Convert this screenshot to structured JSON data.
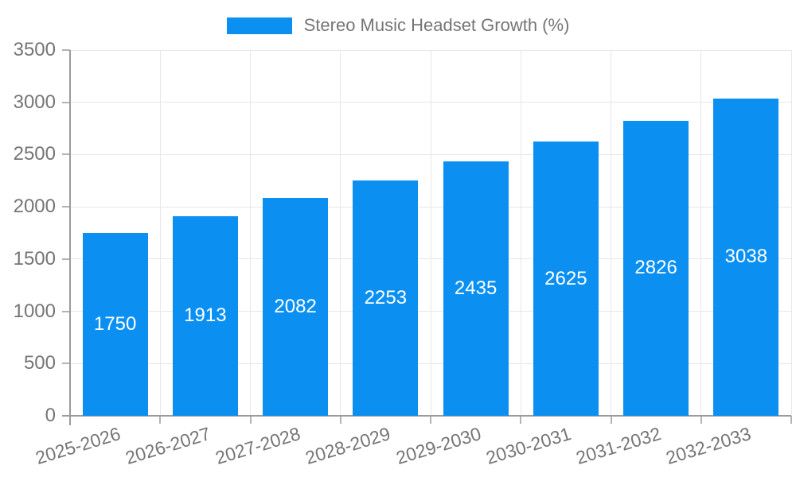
{
  "chart_data": {
    "type": "bar",
    "title": "Stereo Music Headset Growth (%)",
    "legend": [
      "Stereo Music Headset Growth (%)"
    ],
    "legend_position": "top-center",
    "categories": [
      "2025-2026",
      "2026-2027",
      "2027-2028",
      "2028-2029",
      "2029-2030",
      "2030-2031",
      "2031-2032",
      "2032-2033"
    ],
    "values": [
      1750,
      1913,
      2082,
      2253,
      2435,
      2625,
      2826,
      3038
    ],
    "bar_labels_shown": true,
    "xlabel": "",
    "ylabel": "",
    "ylim": [
      0,
      3500
    ],
    "y_ticks": [
      0,
      500,
      1000,
      1500,
      2000,
      2500,
      3000,
      3500
    ],
    "x_tick_rotation_deg": -17,
    "grid": true,
    "colors": {
      "bar": "#0b90f2",
      "bar_value_text": "#ffffff",
      "grid_line": "#e7e7e7",
      "axis_line": "#9b9b9b",
      "tick_mark": "#b3b3b3",
      "tick_label_text": "#757575",
      "legend_text": "#757575",
      "background": "#ffffff"
    }
  }
}
